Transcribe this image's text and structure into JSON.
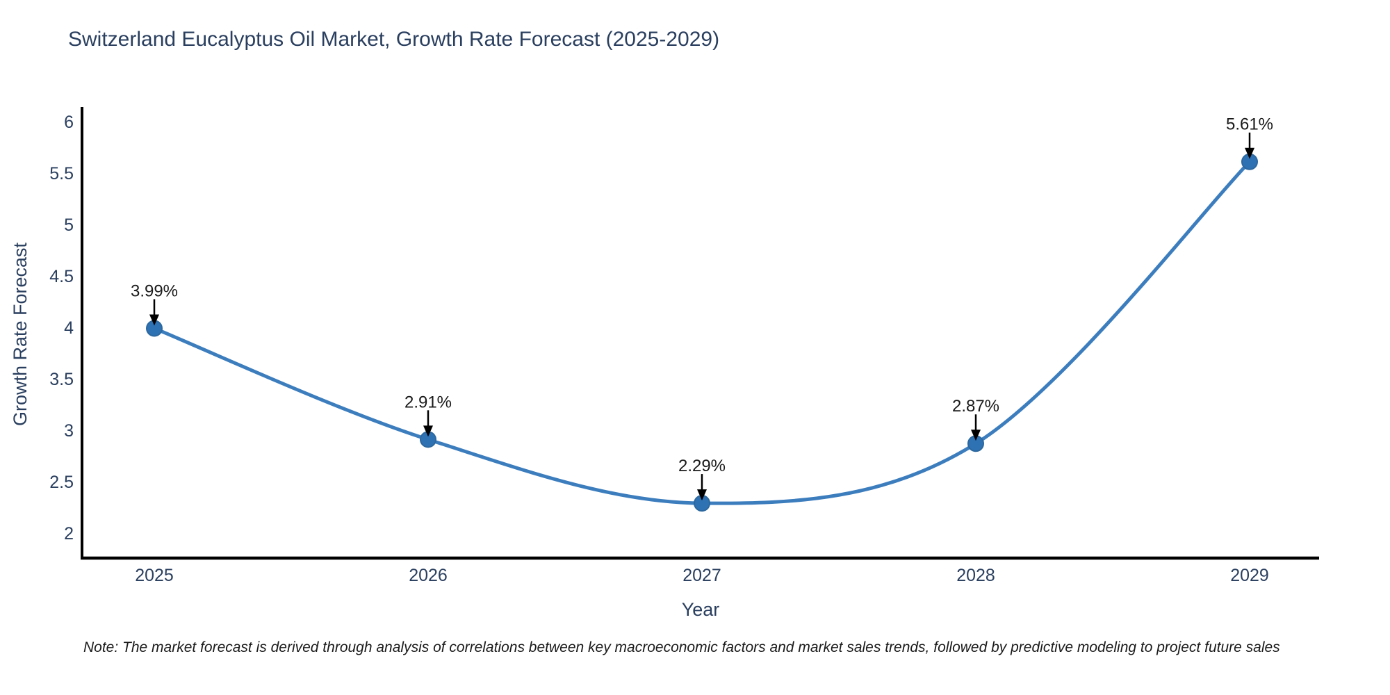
{
  "chart_data": {
    "type": "line",
    "line_shape": "spline",
    "title": "Switzerland Eucalyptus Oil Market, Growth Rate Forecast (2025-2029)",
    "xlabel": "Year",
    "ylabel": "Growth Rate Forecast",
    "x": [
      2025,
      2026,
      2027,
      2028,
      2029
    ],
    "values": [
      3.99,
      2.91,
      2.29,
      2.87,
      5.61
    ],
    "point_labels": [
      "3.99%",
      "2.91%",
      "2.29%",
      "2.87%",
      "5.61%"
    ],
    "xticks": [
      "2025",
      "2026",
      "2027",
      "2028",
      "2029"
    ],
    "yticks": [
      2,
      2.5,
      3,
      3.5,
      4,
      4.5,
      5,
      5.5,
      6
    ],
    "ylim": [
      2,
      6
    ],
    "grid": false,
    "legend": false,
    "annotations_have_arrows": true,
    "colors": {
      "line": "#3c7dbe",
      "marker_fill": "#2f72b4",
      "marker_edge": "#2c689f",
      "axis_line": "#000000",
      "axis_text": "#2a3f5f",
      "annotation_text": "#1a1a1a",
      "arrow": "#000000",
      "background": "#ffffff"
    },
    "note": "Note: The market forecast is derived through analysis of correlations between key macroeconomic factors and market sales trends, followed by predictive modeling to project future sales"
  }
}
